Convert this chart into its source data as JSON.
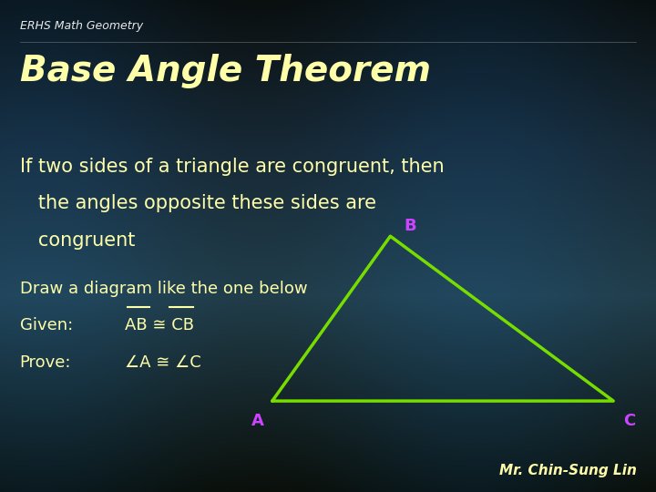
{
  "bg_color_top": "#0a1520",
  "bg_color_mid": "#0d2535",
  "bg_color_bot": "#060e14",
  "title_small": "ERHS Math Geometry",
  "title_small_color": "#e8e8e8",
  "title_small_fontsize": 9,
  "title_main": "Base Angle Theorem",
  "title_main_color": "#ffffaa",
  "title_main_fontsize": 28,
  "body_text_line1": "If two sides of a triangle are congruent, then",
  "body_text_line2": "   the angles opposite these sides are",
  "body_text_line3": "   congruent",
  "body_color": "#ffffaa",
  "body_fontsize": 15,
  "draw_text": "Draw a diagram like the one below",
  "draw_color": "#ffffaa",
  "draw_fontsize": 13,
  "given_label": "Given:",
  "given_value": "AB ≅ CB",
  "prove_label": "Prove:",
  "prove_value": "∠A ≅ ∠C",
  "given_prove_color": "#ffffaa",
  "given_prove_fontsize": 13,
  "overline_color": "#ffffaa",
  "triangle_color": "#77dd00",
  "triangle_A": [
    0.415,
    0.185
  ],
  "triangle_B": [
    0.595,
    0.52
  ],
  "triangle_C": [
    0.935,
    0.185
  ],
  "vertex_labels": [
    "A",
    "B",
    "C"
  ],
  "vertex_label_color": "#cc44ff",
  "vertex_label_fontsize": 13,
  "author_text": "Mr. Chin-Sung Lin",
  "author_color": "#ffffaa",
  "author_fontsize": 11
}
